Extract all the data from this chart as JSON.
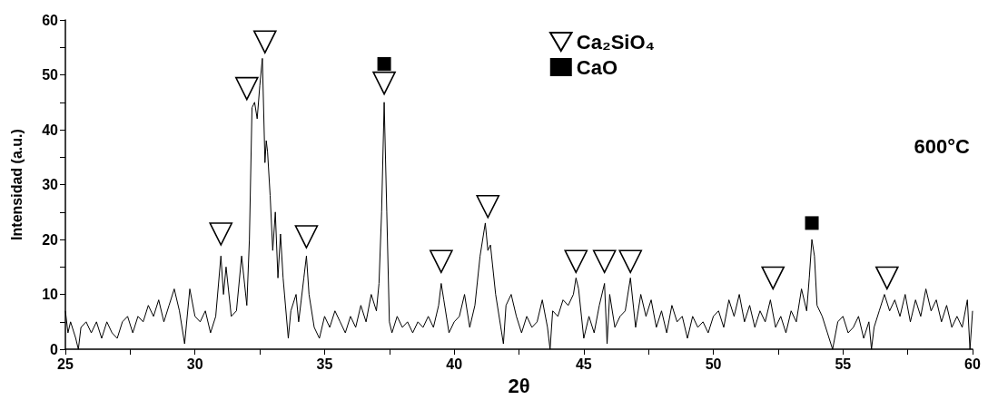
{
  "chart_data": {
    "type": "line",
    "xlabel": "2θ",
    "ylabel": "Intensidad (a.u.)",
    "annotations": [
      "600°C"
    ],
    "xlim": [
      25,
      60
    ],
    "xticks": [
      25,
      30,
      35,
      40,
      45,
      50,
      55,
      60
    ],
    "ylim": [
      0,
      60
    ],
    "yticks": [
      0,
      10,
      20,
      30,
      40,
      50,
      60
    ],
    "grid": false,
    "legend": "top right",
    "series": [
      {
        "color": "#000000",
        "marker": "none",
        "x": [
          25.0,
          25.1,
          25.2,
          25.4,
          25.5,
          25.6,
          25.8,
          26.0,
          26.2,
          26.4,
          26.6,
          26.8,
          27.0,
          27.2,
          27.4,
          27.6,
          27.8,
          28.0,
          28.2,
          28.4,
          28.6,
          28.8,
          29.0,
          29.2,
          29.4,
          29.6,
          29.8,
          30.0,
          30.2,
          30.4,
          30.6,
          30.8,
          31.0,
          31.1,
          31.2,
          31.4,
          31.6,
          31.8,
          32.0,
          32.1,
          32.2,
          32.3,
          32.4,
          32.5,
          32.6,
          32.7,
          32.75,
          32.8,
          32.9,
          33.0,
          33.1,
          33.2,
          33.3,
          33.4,
          33.6,
          33.7,
          33.9,
          34.0,
          34.2,
          34.3,
          34.4,
          34.6,
          34.8,
          35.0,
          35.2,
          35.4,
          35.6,
          35.8,
          36.0,
          36.2,
          36.4,
          36.6,
          36.8,
          37.0,
          37.1,
          37.2,
          37.3,
          37.4,
          37.5,
          37.6,
          37.8,
          38.0,
          38.2,
          38.4,
          38.6,
          38.8,
          39.0,
          39.2,
          39.4,
          39.5,
          39.6,
          39.8,
          40.0,
          40.2,
          40.4,
          40.6,
          40.8,
          41.0,
          41.2,
          41.3,
          41.4,
          41.6,
          41.8,
          41.9,
          42.0,
          42.2,
          42.4,
          42.6,
          42.8,
          43.0,
          43.2,
          43.4,
          43.6,
          43.7,
          43.8,
          44.0,
          44.2,
          44.4,
          44.6,
          44.7,
          44.8,
          45.0,
          45.2,
          45.4,
          45.6,
          45.8,
          45.9,
          46.0,
          46.2,
          46.4,
          46.6,
          46.8,
          47.0,
          47.2,
          47.4,
          47.6,
          47.8,
          48.0,
          48.2,
          48.4,
          48.6,
          48.8,
          49.0,
          49.2,
          49.4,
          49.6,
          49.8,
          50.0,
          50.2,
          50.4,
          50.6,
          50.8,
          51.0,
          51.2,
          51.4,
          51.6,
          51.8,
          52.0,
          52.2,
          52.4,
          52.6,
          52.8,
          53.0,
          53.2,
          53.4,
          53.6,
          53.7,
          53.8,
          53.9,
          54.0,
          54.2,
          54.4,
          54.6,
          54.8,
          55.0,
          55.2,
          55.4,
          55.6,
          55.8,
          56.0,
          56.1,
          56.2,
          56.4,
          56.6,
          56.8,
          57.0,
          57.2,
          57.4,
          57.6,
          57.8,
          58.0,
          58.2,
          58.4,
          58.6,
          58.8,
          59.0,
          59.2,
          59.4,
          59.6,
          59.8,
          59.9,
          60.0
        ],
        "values": [
          7,
          3,
          5,
          2,
          0,
          4,
          5,
          3,
          5,
          2,
          5,
          3,
          2,
          5,
          6,
          3,
          6,
          5,
          8,
          6,
          9,
          5,
          8,
          11,
          7,
          1,
          11,
          6,
          5,
          7,
          3,
          6,
          17,
          10,
          15,
          6,
          7,
          17,
          8,
          20,
          44,
          45,
          42,
          48,
          53,
          34,
          38,
          36,
          28,
          18,
          25,
          13,
          21,
          13,
          2,
          7,
          10,
          5,
          13,
          17,
          10,
          4,
          2,
          6,
          4,
          7,
          5,
          3,
          6,
          4,
          8,
          5,
          10,
          7,
          12,
          25,
          45,
          25,
          5,
          3,
          6,
          4,
          5,
          3,
          5,
          4,
          6,
          4,
          8,
          12,
          9,
          3,
          5,
          6,
          10,
          4,
          8,
          17,
          23,
          18,
          19,
          10,
          4,
          1,
          8,
          10,
          6,
          3,
          6,
          4,
          5,
          9,
          4,
          0,
          7,
          6,
          9,
          8,
          10,
          13,
          11,
          2,
          6,
          3,
          8,
          12,
          1,
          10,
          4,
          6,
          7,
          13,
          4,
          10,
          6,
          9,
          4,
          7,
          3,
          8,
          5,
          6,
          2,
          6,
          4,
          5,
          3,
          6,
          7,
          4,
          9,
          6,
          10,
          5,
          8,
          4,
          7,
          5,
          9,
          4,
          6,
          3,
          7,
          5,
          11,
          7,
          13,
          20,
          17,
          8,
          6,
          3,
          0,
          5,
          6,
          3,
          4,
          6,
          2,
          5,
          0,
          4,
          7,
          10,
          7,
          9,
          6,
          10,
          5,
          9,
          6,
          11,
          7,
          9,
          5,
          8,
          4,
          6,
          4,
          9,
          0,
          7
        ]
      },
      {
        "type": "scatter",
        "name": "Ca₂SiO₄",
        "color": "#000000",
        "marker": "triangle",
        "x": [
          31.0,
          32.0,
          32.7,
          34.3,
          37.3,
          39.5,
          41.3,
          44.7,
          45.8,
          46.8,
          52.3,
          56.7
        ],
        "values": [
          21,
          47.5,
          56,
          20.5,
          48.5,
          16,
          26,
          16,
          16,
          16,
          13,
          13
        ]
      },
      {
        "type": "scatter",
        "name": "CaO",
        "color": "#000000",
        "marker": "square",
        "x": [
          37.3,
          53.8
        ],
        "values": [
          52,
          23
        ]
      }
    ]
  }
}
